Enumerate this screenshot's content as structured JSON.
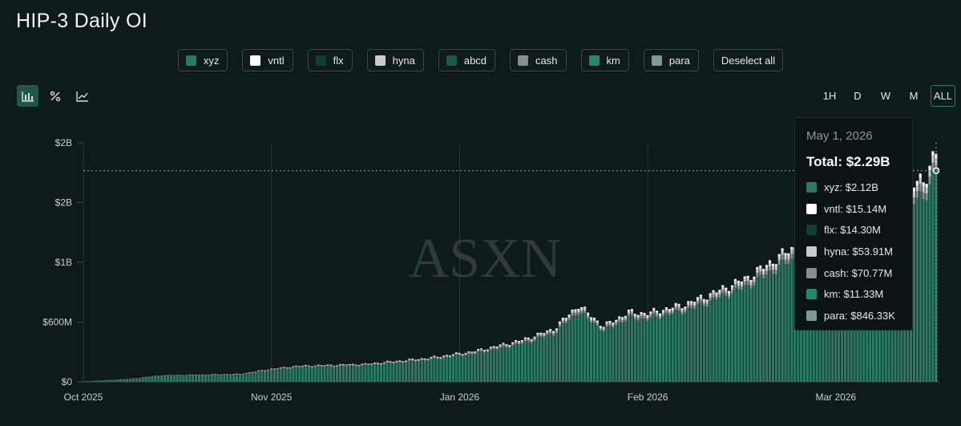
{
  "title": "HIP-3 Daily OI",
  "legend": [
    {
      "label": "xyz",
      "color": "#2a7a63"
    },
    {
      "label": "vntl",
      "color": "#ffffff"
    },
    {
      "label": "flx",
      "color": "#0f3f32"
    },
    {
      "label": "hyna",
      "color": "#c9cccb"
    },
    {
      "label": "abcd",
      "color": "#145c48"
    },
    {
      "label": "cash",
      "color": "#8a8f8e"
    },
    {
      "label": "km",
      "color": "#1f8a6c"
    },
    {
      "label": "para",
      "color": "#7e9894"
    }
  ],
  "deselect_label": "Deselect all",
  "view_modes": [
    {
      "name": "bar-chart-icon",
      "active": true
    },
    {
      "name": "percent-icon",
      "active": false
    },
    {
      "name": "line-chart-icon",
      "active": false
    }
  ],
  "ranges": [
    "1H",
    "D",
    "W",
    "M",
    "ALL"
  ],
  "active_range": "ALL",
  "watermark": "ASXN",
  "tooltip": {
    "date": "May 1, 2026",
    "total": "Total: $2.29B",
    "rows": [
      {
        "label": "xyz: $2.12B",
        "color": "#2a7a63"
      },
      {
        "label": "vntl: $15.14M",
        "color": "#ffffff"
      },
      {
        "label": "flx: $14.30M",
        "color": "#0f3f32"
      },
      {
        "label": "hyna: $53.91M",
        "color": "#c9cccb"
      },
      {
        "label": "cash: $70.77M",
        "color": "#8a8f8e"
      },
      {
        "label": "km: $11.33M",
        "color": "#1f8a6c"
      },
      {
        "label": "para: $846.33K",
        "color": "#7e9894"
      }
    ]
  },
  "chart_data": {
    "type": "bar",
    "stacked": true,
    "y_tick_labels": [
      "$0",
      "$600M",
      "$1B",
      "$2B",
      "$2B"
    ],
    "y_tick_values": [
      0,
      600000000,
      1200000000,
      1800000000,
      2400000000
    ],
    "ylim": [
      0,
      2400000000
    ],
    "x_tick_labels": [
      "Oct 2025",
      "Nov 2025",
      "Jan 2026",
      "Feb 2026",
      "Mar 2026"
    ],
    "x_tick_day_index": [
      0,
      60,
      120,
      180,
      240
    ],
    "grid": "vertical",
    "colors": {
      "xyz": "#2a7a63",
      "other_light": "#c9cccb",
      "other_grey": "#8a8f8e",
      "other_white": "#ffffff"
    },
    "series_totals_keypoints": [
      {
        "x_day": 0,
        "total": 5000000
      },
      {
        "x_day": 15,
        "total": 30000000
      },
      {
        "x_day": 25,
        "total": 65000000
      },
      {
        "x_day": 50,
        "total": 80000000
      },
      {
        "x_day": 60,
        "total": 130000000
      },
      {
        "x_day": 68,
        "total": 160000000
      },
      {
        "x_day": 90,
        "total": 180000000
      },
      {
        "x_day": 110,
        "total": 240000000
      },
      {
        "x_day": 125,
        "total": 310000000
      },
      {
        "x_day": 140,
        "total": 420000000
      },
      {
        "x_day": 150,
        "total": 530000000
      },
      {
        "x_day": 158,
        "total": 770000000
      },
      {
        "x_day": 166,
        "total": 560000000
      },
      {
        "x_day": 174,
        "total": 700000000
      },
      {
        "x_day": 180,
        "total": 690000000
      },
      {
        "x_day": 192,
        "total": 780000000
      },
      {
        "x_day": 200,
        "total": 880000000
      },
      {
        "x_day": 212,
        "total": 1050000000
      },
      {
        "x_day": 225,
        "total": 1320000000
      },
      {
        "x_day": 240,
        "total": 1550000000
      },
      {
        "x_day": 255,
        "total": 1770000000
      },
      {
        "x_day": 268,
        "total": 2040000000
      },
      {
        "x_day": 272,
        "total": 2290000000
      }
    ],
    "highlight": {
      "x_day": 272,
      "total": 2290000000,
      "xyz": 2120000000
    }
  }
}
